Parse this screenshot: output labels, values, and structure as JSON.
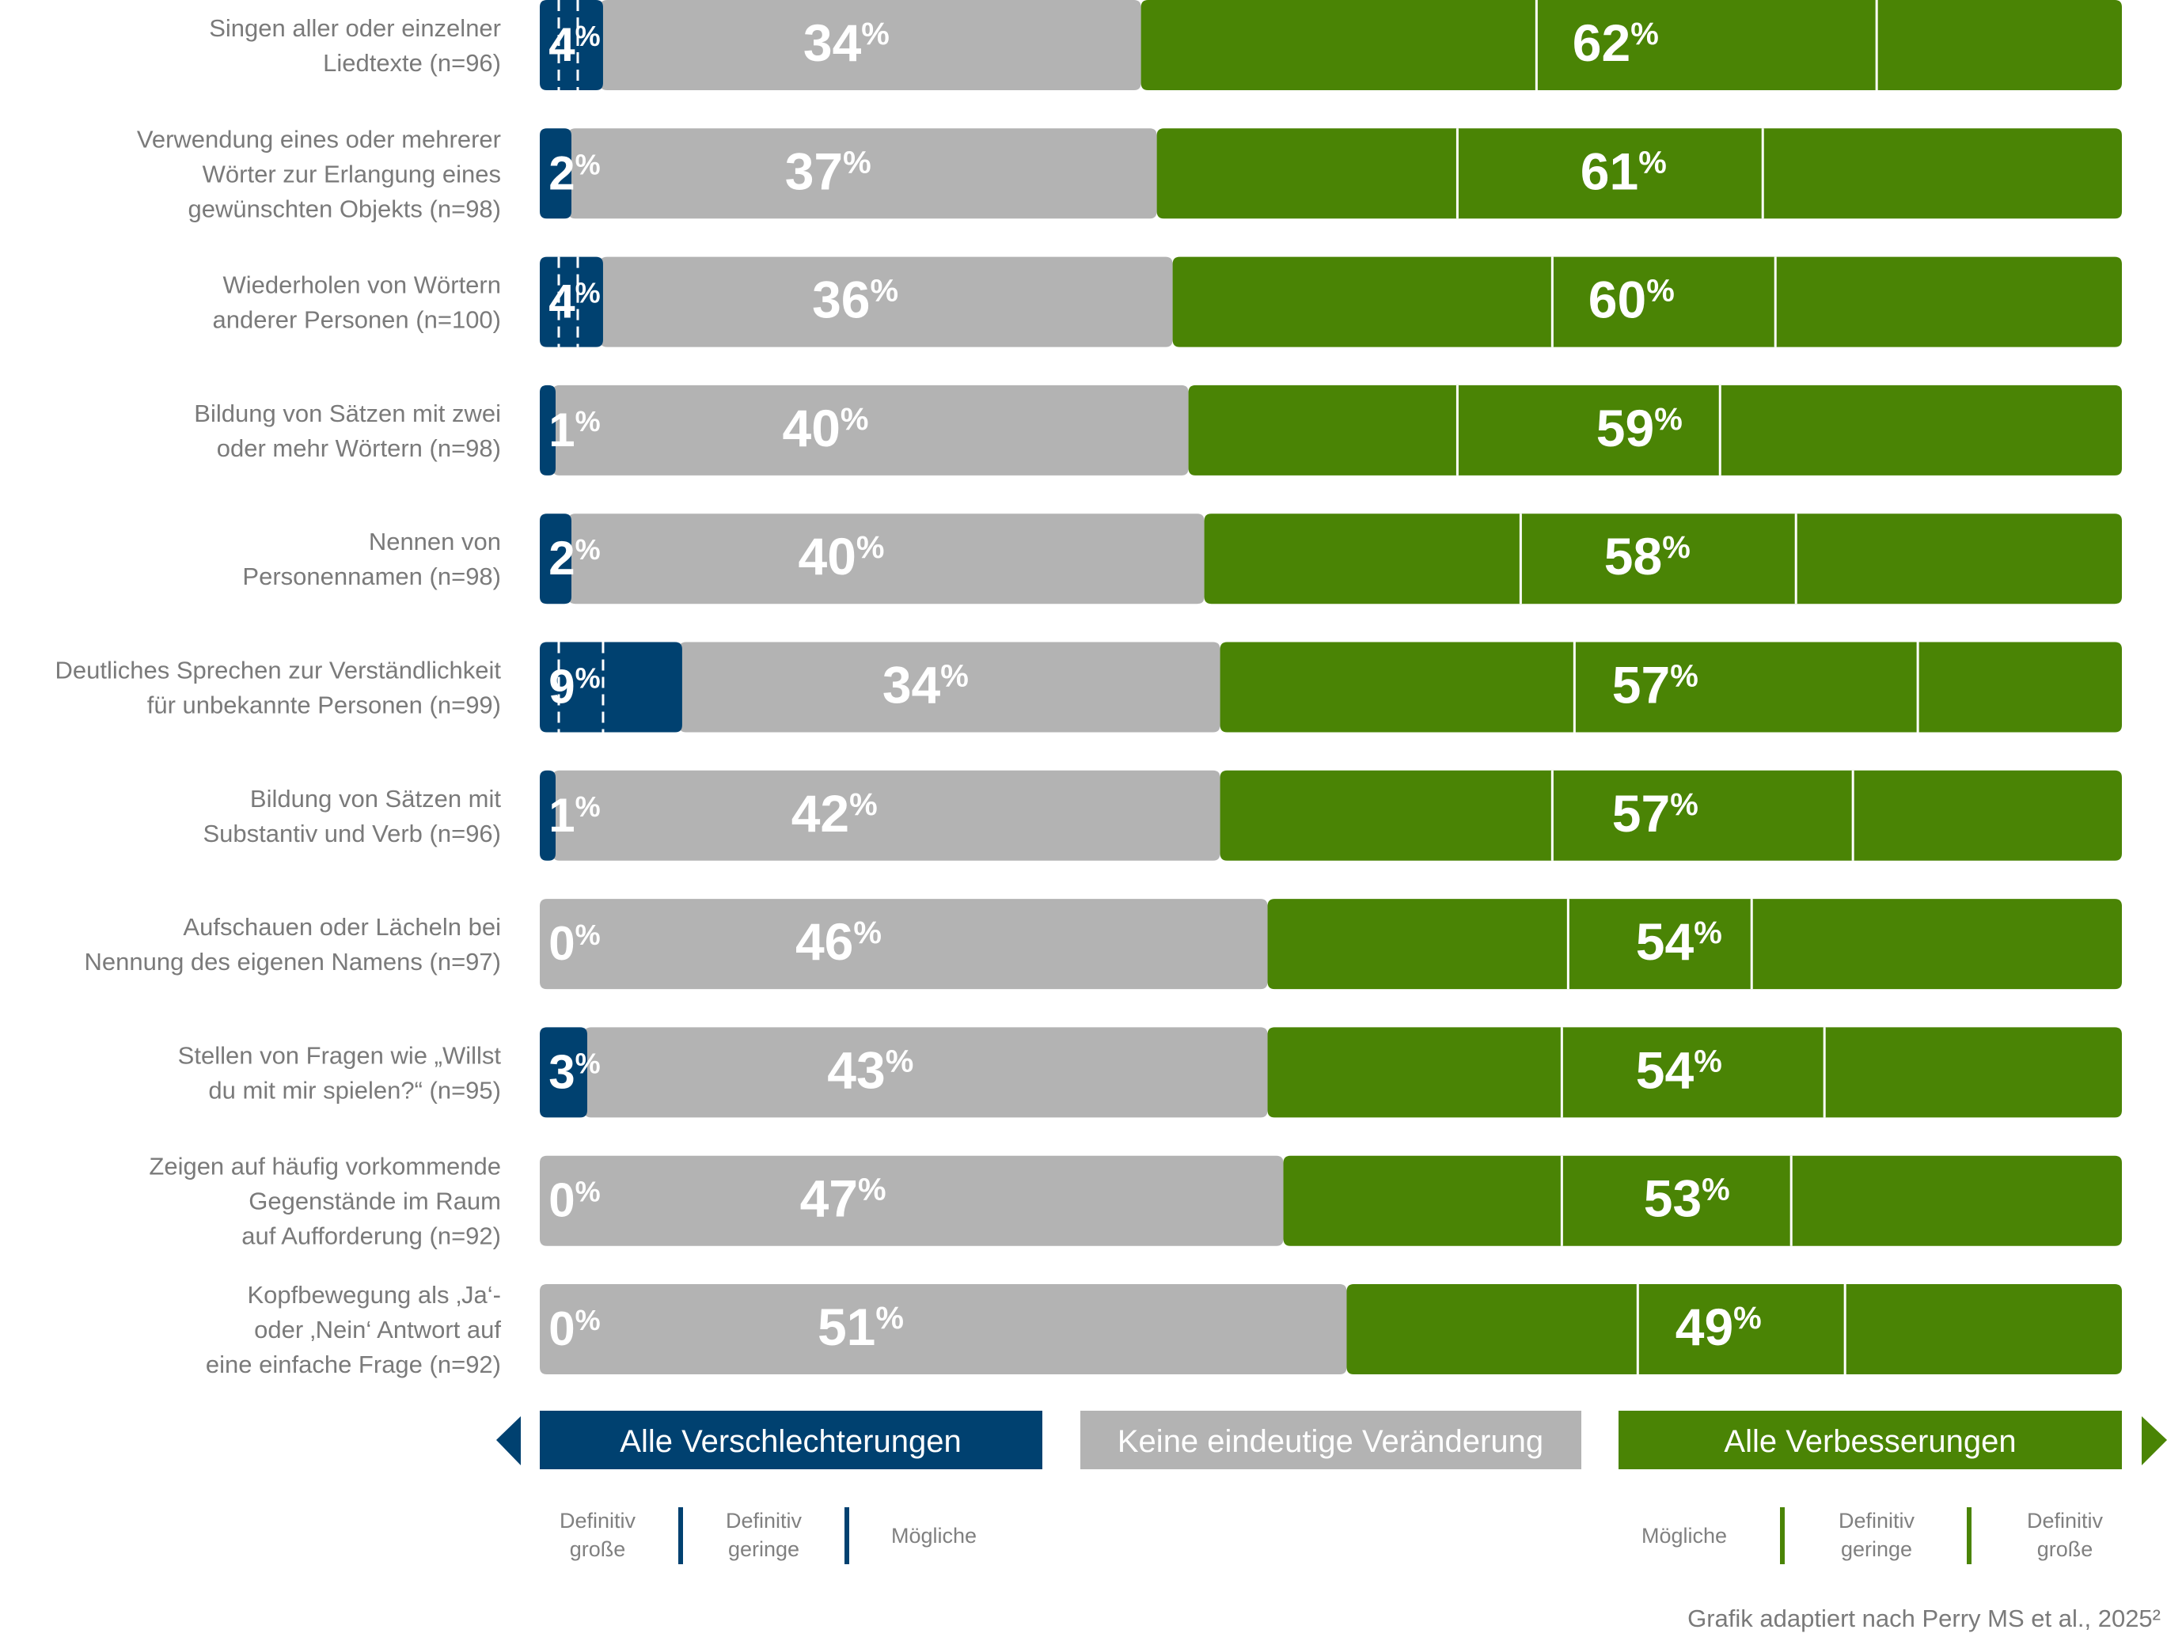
{
  "chart_data": {
    "type": "bar",
    "orientation": "horizontal-stacked",
    "categories": [
      [
        "Singen aller oder einzelner",
        "Liedtexte (n=96)"
      ],
      [
        "Verwendung eines oder mehrerer",
        "Wörter zur Erlangung eines",
        "gewünschten Objekts (n=98)"
      ],
      [
        "Wiederholen von Wörtern",
        "anderer Personen (n=100)"
      ],
      [
        "Bildung von Sätzen mit zwei",
        "oder mehr Wörtern (n=98)"
      ],
      [
        "Nennen von",
        "Personennamen (n=98)"
      ],
      [
        "Deutliches Sprechen zur Verständlichkeit",
        "für unbekannte Personen (n=99)"
      ],
      [
        "Bildung von Sätzen mit",
        "Substantiv und Verb (n=96)"
      ],
      [
        "Aufschauen oder Lächeln bei",
        "Nennung des eigenen Namens (n=97)"
      ],
      [
        "Stellen von Fragen wie „Willst",
        "du mit mir spielen?“ (n=95)"
      ],
      [
        "Zeigen auf häufig vorkommende",
        "Gegenstände im Raum",
        "auf Aufforderung (n=92)"
      ],
      [
        "Kopfbewegung als ‚Ja‘-",
        "oder ‚Nein‘ Antwort auf",
        "eine einfache Frage (n=92)"
      ]
    ],
    "series": [
      {
        "name": "Alle Verschlechterungen",
        "values": [
          4,
          2,
          4,
          1,
          2,
          9,
          1,
          0,
          3,
          0,
          0
        ]
      },
      {
        "name": "Keine eindeutige Veränderung",
        "values": [
          34,
          37,
          36,
          40,
          40,
          34,
          42,
          46,
          43,
          47,
          51
        ]
      },
      {
        "name": "Alle Verbesserungen",
        "values": [
          62,
          61,
          60,
          59,
          58,
          57,
          57,
          54,
          54,
          53,
          49
        ]
      }
    ],
    "worse_divider_cumulative": [
      [
        1.2,
        2.4
      ],
      [],
      [
        1.2,
        2.4
      ],
      [],
      [],
      [
        1.2,
        4.0
      ],
      [],
      [],
      [],
      [],
      []
    ],
    "improvement_divider_cumulative": [
      [
        63,
        84.5
      ],
      [
        58,
        77.3
      ],
      [
        64,
        78.1
      ],
      [
        58,
        74.6
      ],
      [
        62,
        79.4
      ],
      [
        65.4,
        87.1
      ],
      [
        64,
        83.0
      ],
      [
        65,
        76.6
      ],
      [
        64.6,
        81.2
      ],
      [
        64.6,
        79.1
      ],
      [
        69.4,
        82.5
      ]
    ],
    "xlim": [
      0,
      100
    ],
    "colors": {
      "worse": "#004170",
      "neutral": "#b3b3b3",
      "better": "#4a8405",
      "divider": "#ffffff"
    }
  },
  "legend": {
    "worse_label": "Alle Verschlechterungen",
    "neutral_label": "Keine eindeutige Veränderung",
    "better_label": "Alle Verbesserungen",
    "worse_sub": [
      [
        "Definitiv",
        "große"
      ],
      [
        "Definitiv",
        "geringe"
      ],
      [
        "Mögliche"
      ]
    ],
    "better_sub": [
      [
        "Mögliche"
      ],
      [
        "Definitiv",
        "geringe"
      ],
      [
        "Definitiv",
        "große"
      ]
    ]
  },
  "source": {
    "text": "Grafik adaptiert nach Perry MS et al., 2025²"
  }
}
